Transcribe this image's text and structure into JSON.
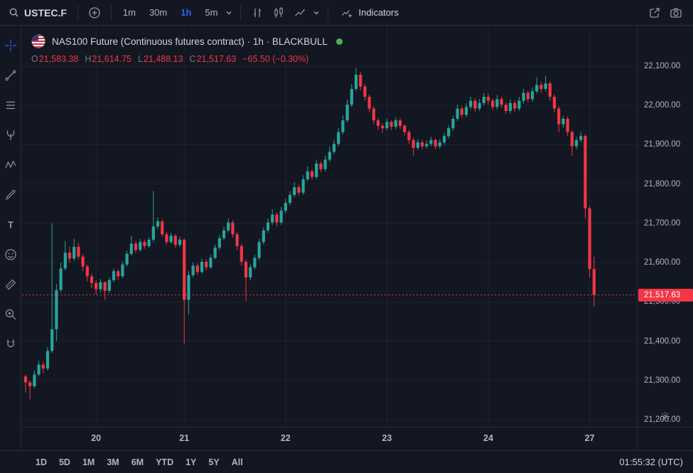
{
  "colors": {
    "background": "#131722",
    "border": "#2a2e39",
    "text_primary": "#d1d4dc",
    "text_secondary": "#b2b5be",
    "text_muted": "#787b86",
    "accent": "#2962ff",
    "up": "#26a69a",
    "down": "#f23645",
    "status_dot": "#4caf50"
  },
  "top_toolbar": {
    "symbol": "USTEC.F",
    "intervals": [
      {
        "label": "1m",
        "active": false
      },
      {
        "label": "30m",
        "active": false
      },
      {
        "label": "1h",
        "active": true
      },
      {
        "label": "5m",
        "active": false
      }
    ],
    "indicators_label": "Indicators",
    "icons": [
      "search-icon",
      "add-symbol-icon",
      "chevron-down-icon",
      "ohlc-bars-icon",
      "candlesticks-icon",
      "area-chart-icon",
      "indicators-icon",
      "open-in-new-icon",
      "camera-icon"
    ]
  },
  "side_toolbar": {
    "tools": [
      "crosshair",
      "trend-line",
      "fib-retracement",
      "pitchfork",
      "xabcd-pattern",
      "brush",
      "text",
      "emoji",
      "measure",
      "zoom-in",
      "magnet"
    ]
  },
  "legend": {
    "title": "NAS100 Future (Continuous futures contract) · 1h · BLACKBULL",
    "ohlc": {
      "open_label": "O",
      "open": "21,583.38",
      "high_label": "H",
      "high": "21,614.75",
      "low_label": "L",
      "low": "21,488.13",
      "close_label": "C",
      "close": "21,517.63",
      "change": "−65.50 (−0.30%)"
    }
  },
  "price_scale": {
    "ticks": [
      "22,100.00",
      "22,000.00",
      "21,900.00",
      "21,800.00",
      "21,700.00",
      "21,600.00",
      "21,500.00",
      "21,400.00",
      "21,300.00",
      "21,200.00"
    ],
    "last_price_label": "21,517.63"
  },
  "time_scale": {
    "labels": [
      {
        "text": "20",
        "candle_index": 16
      },
      {
        "text": "21",
        "candle_index": 36
      },
      {
        "text": "22",
        "candle_index": 59
      },
      {
        "text": "23",
        "candle_index": 82
      },
      {
        "text": "24",
        "candle_index": 105
      },
      {
        "text": "27",
        "candle_index": 128
      }
    ]
  },
  "bottom_toolbar": {
    "ranges": [
      "1D",
      "5D",
      "1M",
      "3M",
      "6M",
      "YTD",
      "1Y",
      "5Y",
      "All"
    ],
    "clock": "01:55:32 (UTC)"
  },
  "chart_data": {
    "type": "candlestick",
    "title": "NAS100 Future (Continuous futures contract)",
    "interval": "1h",
    "exchange": "BLACKBULL",
    "last_price": 21517.63,
    "change": -65.5,
    "change_percent": -0.3,
    "ylim": [
      21180,
      22200
    ],
    "price_gridlines": [
      22100,
      22000,
      21900,
      21800,
      21700,
      21600,
      21500,
      21400,
      21300,
      21200
    ],
    "candles": [
      [
        21310,
        21315,
        21270,
        21295
      ],
      [
        21295,
        21300,
        21252,
        21285
      ],
      [
        21285,
        21325,
        21280,
        21315
      ],
      [
        21315,
        21350,
        21310,
        21340
      ],
      [
        21340,
        21348,
        21318,
        21330
      ],
      [
        21330,
        21385,
        21325,
        21375
      ],
      [
        21375,
        21700,
        21370,
        21430
      ],
      [
        21430,
        21545,
        21400,
        21530
      ],
      [
        21530,
        21600,
        21525,
        21585
      ],
      [
        21585,
        21655,
        21580,
        21625
      ],
      [
        21625,
        21640,
        21600,
        21610
      ],
      [
        21610,
        21660,
        21605,
        21640
      ],
      [
        21640,
        21650,
        21608,
        21615
      ],
      [
        21615,
        21622,
        21578,
        21590
      ],
      [
        21590,
        21595,
        21552,
        21565
      ],
      [
        21565,
        21572,
        21535,
        21548
      ],
      [
        21548,
        21555,
        21518,
        21532
      ],
      [
        21532,
        21558,
        21525,
        21550
      ],
      [
        21550,
        21552,
        21505,
        21528
      ],
      [
        21528,
        21562,
        21522,
        21555
      ],
      [
        21555,
        21585,
        21550,
        21578
      ],
      [
        21578,
        21582,
        21555,
        21565
      ],
      [
        21565,
        21602,
        21560,
        21595
      ],
      [
        21595,
        21630,
        21590,
        21622
      ],
      [
        21622,
        21668,
        21618,
        21648
      ],
      [
        21648,
        21655,
        21625,
        21632
      ],
      [
        21632,
        21660,
        21628,
        21652
      ],
      [
        21652,
        21658,
        21635,
        21642
      ],
      [
        21642,
        21665,
        21638,
        21658
      ],
      [
        21658,
        21782,
        21652,
        21692
      ],
      [
        21692,
        21715,
        21685,
        21705
      ],
      [
        21705,
        21710,
        21665,
        21672
      ],
      [
        21672,
        21678,
        21645,
        21652
      ],
      [
        21652,
        21675,
        21648,
        21668
      ],
      [
        21668,
        21672,
        21638,
        21645
      ],
      [
        21645,
        21666,
        21640,
        21658
      ],
      [
        21658,
        21662,
        21392,
        21505
      ],
      [
        21505,
        21578,
        21468,
        21568
      ],
      [
        21568,
        21600,
        21562,
        21592
      ],
      [
        21592,
        21598,
        21568,
        21576
      ],
      [
        21576,
        21610,
        21572,
        21602
      ],
      [
        21602,
        21608,
        21580,
        21588
      ],
      [
        21588,
        21620,
        21584,
        21612
      ],
      [
        21612,
        21646,
        21608,
        21638
      ],
      [
        21638,
        21670,
        21632,
        21662
      ],
      [
        21662,
        21692,
        21656,
        21682
      ],
      [
        21682,
        21712,
        21676,
        21702
      ],
      [
        21702,
        21708,
        21664,
        21672
      ],
      [
        21672,
        21678,
        21632,
        21642
      ],
      [
        21642,
        21648,
        21592,
        21602
      ],
      [
        21602,
        21608,
        21502,
        21562
      ],
      [
        21562,
        21596,
        21555,
        21588
      ],
      [
        21588,
        21620,
        21582,
        21612
      ],
      [
        21612,
        21660,
        21606,
        21652
      ],
      [
        21652,
        21690,
        21646,
        21682
      ],
      [
        21682,
        21712,
        21676,
        21702
      ],
      [
        21702,
        21735,
        21696,
        21722
      ],
      [
        21722,
        21728,
        21692,
        21702
      ],
      [
        21702,
        21742,
        21696,
        21732
      ],
      [
        21732,
        21762,
        21726,
        21752
      ],
      [
        21752,
        21782,
        21746,
        21772
      ],
      [
        21772,
        21805,
        21766,
        21792
      ],
      [
        21792,
        21798,
        21770,
        21778
      ],
      [
        21778,
        21822,
        21772,
        21812
      ],
      [
        21812,
        21845,
        21806,
        21832
      ],
      [
        21832,
        21838,
        21810,
        21818
      ],
      [
        21818,
        21862,
        21812,
        21852
      ],
      [
        21852,
        21858,
        21830,
        21838
      ],
      [
        21838,
        21872,
        21832,
        21862
      ],
      [
        21862,
        21895,
        21856,
        21882
      ],
      [
        21882,
        21912,
        21876,
        21902
      ],
      [
        21902,
        21942,
        21896,
        21932
      ],
      [
        21932,
        21975,
        21926,
        21962
      ],
      [
        21962,
        22015,
        21956,
        22002
      ],
      [
        22002,
        22055,
        21996,
        22042
      ],
      [
        22042,
        22096,
        22036,
        22078
      ],
      [
        22078,
        22085,
        22038,
        22048
      ],
      [
        22048,
        22055,
        22012,
        22022
      ],
      [
        22022,
        22028,
        21982,
        21992
      ],
      [
        21992,
        21998,
        21952,
        21962
      ],
      [
        21962,
        21968,
        21938,
        21948
      ],
      [
        21948,
        21955,
        21930,
        21942
      ],
      [
        21942,
        21966,
        21936,
        21958
      ],
      [
        21958,
        21962,
        21938,
        21946
      ],
      [
        21946,
        21970,
        21940,
        21962
      ],
      [
        21962,
        21968,
        21940,
        21948
      ],
      [
        21948,
        21952,
        21924,
        21932
      ],
      [
        21932,
        21938,
        21902,
        21912
      ],
      [
        21912,
        21918,
        21872,
        21892
      ],
      [
        21892,
        21914,
        21886,
        21906
      ],
      [
        21906,
        21912,
        21888,
        21896
      ],
      [
        21896,
        21910,
        21890,
        21902
      ],
      [
        21902,
        21920,
        21896,
        21912
      ],
      [
        21912,
        21916,
        21888,
        21896
      ],
      [
        21896,
        21914,
        21890,
        21906
      ],
      [
        21906,
        21930,
        21900,
        21922
      ],
      [
        21922,
        21950,
        21916,
        21942
      ],
      [
        21942,
        21974,
        21936,
        21966
      ],
      [
        21966,
        22002,
        21960,
        21992
      ],
      [
        21992,
        21998,
        21968,
        21976
      ],
      [
        21976,
        22006,
        21970,
        21996
      ],
      [
        21996,
        22022,
        21990,
        22012
      ],
      [
        22012,
        22018,
        21984,
        21992
      ],
      [
        21992,
        22016,
        21986,
        22006
      ],
      [
        22006,
        22032,
        22000,
        22022
      ],
      [
        22022,
        22030,
        22002,
        22012
      ],
      [
        22012,
        22018,
        21988,
        21996
      ],
      [
        21996,
        22026,
        21990,
        22016
      ],
      [
        22016,
        22022,
        21994,
        22002
      ],
      [
        22002,
        22008,
        21978,
        21986
      ],
      [
        21986,
        22016,
        21980,
        22006
      ],
      [
        22006,
        22012,
        21984,
        21992
      ],
      [
        21992,
        22022,
        21986,
        22012
      ],
      [
        22012,
        22042,
        22006,
        22032
      ],
      [
        22032,
        22038,
        22008,
        22016
      ],
      [
        22016,
        22046,
        22010,
        22036
      ],
      [
        22036,
        22072,
        22030,
        22052
      ],
      [
        22052,
        22060,
        22032,
        22042
      ],
      [
        22042,
        22076,
        22036,
        22056
      ],
      [
        22056,
        22062,
        22012,
        22022
      ],
      [
        22022,
        22028,
        21982,
        21992
      ],
      [
        21992,
        21998,
        21932,
        21952
      ],
      [
        21952,
        21974,
        21944,
        21966
      ],
      [
        21966,
        21972,
        21922,
        21932
      ],
      [
        21932,
        21938,
        21872,
        21896
      ],
      [
        21896,
        21920,
        21888,
        21912
      ],
      [
        21912,
        21932,
        21906,
        21922
      ],
      [
        21922,
        21926,
        21712,
        21738
      ],
      [
        21738,
        21744,
        21562,
        21583.38
      ],
      [
        21583.38,
        21614.75,
        21488.13,
        21517.63
      ]
    ]
  }
}
